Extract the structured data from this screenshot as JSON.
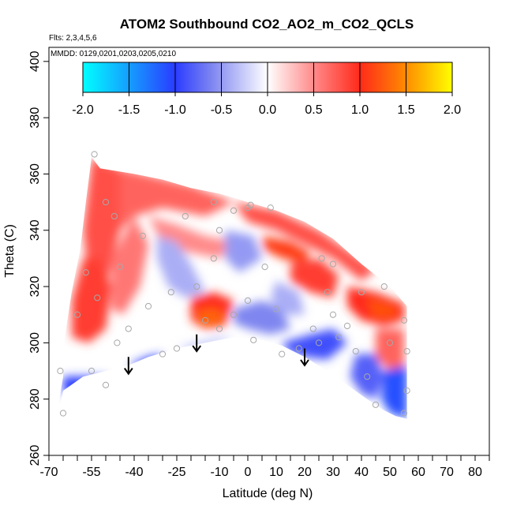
{
  "chart_data": {
    "type": "heatmap",
    "title": "ATOM2 Southbound CO2_AO2_m_CO2_QCLS",
    "subtitle_flights": "Flts: 2,3,4,5,6",
    "subtitle_dates": "MMDD: 0129,0201,0203,0205,0210",
    "xlabel": "Latitude (deg N)",
    "ylabel": "Theta (C)",
    "xlim": [
      -70,
      85
    ],
    "ylim": [
      260,
      405
    ],
    "x_tick_labels": [
      "-70",
      "-55",
      "-40",
      "-25",
      "-10",
      "0",
      "10",
      "20",
      "30",
      "40",
      "50",
      "60",
      "70",
      "80"
    ],
    "x_tick_values": [
      -70,
      -55,
      -40,
      -25,
      -10,
      0,
      10,
      20,
      30,
      40,
      50,
      60,
      70,
      80
    ],
    "x_minor_ticks": [
      -65,
      -60,
      -50,
      -45,
      -35,
      -30,
      -20,
      -15,
      -5,
      5,
      15,
      25,
      35,
      45,
      55,
      65,
      75,
      85
    ],
    "y_tick_labels": [
      "260",
      "280",
      "300",
      "320",
      "340",
      "360",
      "380",
      "400"
    ],
    "y_tick_values": [
      260,
      280,
      300,
      320,
      340,
      360,
      380,
      400
    ],
    "colorbar": {
      "range": [
        -2,
        2
      ],
      "tick_labels": [
        "-2.0",
        "-1.5",
        "-1.0",
        "-0.5",
        "0.0",
        "0.5",
        "1.0",
        "1.5",
        "2.0"
      ],
      "tick_values": [
        -2,
        -1.5,
        -1,
        -0.5,
        0,
        0.5,
        1,
        1.5,
        2
      ],
      "stops": [
        {
          "v": -2.0,
          "color": "#00ffff"
        },
        {
          "v": -1.0,
          "color": "#2a3cff"
        },
        {
          "v": -0.6,
          "color": "#7f86f0"
        },
        {
          "v": 0.0,
          "color": "#ffffff"
        },
        {
          "v": 0.5,
          "color": "#ff8a8a"
        },
        {
          "v": 1.0,
          "color": "#ff2a1a"
        },
        {
          "v": 1.5,
          "color": "#ff8c00"
        },
        {
          "v": 2.0,
          "color": "#ffff00"
        }
      ]
    },
    "arrows": [
      {
        "lat": -42,
        "theta_top": 295,
        "theta_bottom": 289
      },
      {
        "lat": -18,
        "theta_top": 303,
        "theta_bottom": 297
      },
      {
        "lat": 20,
        "theta_top": 298,
        "theta_bottom": 292
      }
    ],
    "boundary": {
      "upper": [
        [
          -65,
          298
        ],
        [
          -62,
          318
        ],
        [
          -59,
          333
        ],
        [
          -57,
          350
        ],
        [
          -55,
          366
        ],
        [
          -52,
          362
        ],
        [
          -40,
          360
        ],
        [
          -30,
          358
        ],
        [
          -20,
          355
        ],
        [
          -10,
          353
        ],
        [
          0,
          350
        ],
        [
          10,
          347
        ],
        [
          20,
          343
        ],
        [
          30,
          337
        ],
        [
          40,
          328
        ],
        [
          50,
          320
        ],
        [
          56,
          313
        ],
        [
          56,
          306
        ]
      ],
      "lower": [
        [
          56,
          306
        ],
        [
          56,
          280
        ],
        [
          56,
          273
        ],
        [
          52,
          274
        ],
        [
          48,
          276
        ],
        [
          42,
          280
        ],
        [
          35,
          285
        ],
        [
          28,
          290
        ],
        [
          20,
          295
        ],
        [
          12,
          299
        ],
        [
          5,
          301
        ],
        [
          -5,
          302
        ],
        [
          -15,
          300
        ],
        [
          -25,
          298
        ],
        [
          -35,
          295
        ],
        [
          -42,
          292
        ],
        [
          -50,
          290
        ],
        [
          -58,
          288
        ],
        [
          -65,
          283
        ],
        [
          -66,
          278
        ],
        [
          -67,
          276
        ],
        [
          -65,
          288
        ]
      ]
    },
    "field_regions": [
      {
        "v": 0.8,
        "poly": [
          [
            -58,
            340
          ],
          [
            -55,
            366
          ],
          [
            -45,
            362
          ],
          [
            -45,
            340
          ],
          [
            -50,
            320
          ],
          [
            -55,
            310
          ]
        ]
      },
      {
        "v": 0.7,
        "poly": [
          [
            -45,
            362
          ],
          [
            -20,
            356
          ],
          [
            -10,
            352
          ],
          [
            -5,
            350
          ],
          [
            -15,
            345
          ],
          [
            -30,
            348
          ],
          [
            -40,
            345
          ],
          [
            -45,
            340
          ]
        ]
      },
      {
        "v": 0.8,
        "poly": [
          [
            -5,
            350
          ],
          [
            10,
            347
          ],
          [
            25,
            340
          ],
          [
            35,
            333
          ],
          [
            45,
            326
          ],
          [
            40,
            322
          ],
          [
            30,
            330
          ],
          [
            20,
            335
          ],
          [
            10,
            340
          ],
          [
            0,
            343
          ]
        ]
      },
      {
        "v": 1.1,
        "poly": [
          [
            5,
            338
          ],
          [
            15,
            336
          ],
          [
            22,
            332
          ],
          [
            20,
            328
          ],
          [
            12,
            330
          ],
          [
            6,
            333
          ]
        ]
      },
      {
        "v": 0.9,
        "poly": [
          [
            -62,
            315
          ],
          [
            -58,
            330
          ],
          [
            -52,
            330
          ],
          [
            -48,
            320
          ],
          [
            -50,
            305
          ],
          [
            -56,
            300
          ],
          [
            -62,
            302
          ]
        ]
      },
      {
        "v": 0.6,
        "poly": [
          [
            -48,
            330
          ],
          [
            -40,
            345
          ],
          [
            -35,
            335
          ],
          [
            -38,
            320
          ],
          [
            -44,
            310
          ],
          [
            -48,
            312
          ]
        ]
      },
      {
        "v": 0.5,
        "poly": [
          [
            -35,
            345
          ],
          [
            -25,
            342
          ],
          [
            -15,
            338
          ],
          [
            -5,
            336
          ],
          [
            -10,
            330
          ],
          [
            -20,
            332
          ],
          [
            -30,
            335
          ]
        ]
      },
      {
        "v": 1.0,
        "poly": [
          [
            -20,
            316
          ],
          [
            -12,
            318
          ],
          [
            -5,
            315
          ],
          [
            -8,
            306
          ],
          [
            -15,
            305
          ],
          [
            -20,
            308
          ]
        ]
      },
      {
        "v": 1.3,
        "poly": [
          [
            -17,
            312
          ],
          [
            -10,
            312
          ],
          [
            -8,
            308
          ],
          [
            -14,
            306
          ],
          [
            -18,
            308
          ]
        ]
      },
      {
        "v": 0.9,
        "poly": [
          [
            15,
            328
          ],
          [
            25,
            330
          ],
          [
            32,
            324
          ],
          [
            30,
            316
          ],
          [
            22,
            318
          ],
          [
            15,
            322
          ]
        ]
      },
      {
        "v": 1.0,
        "poly": [
          [
            35,
            320
          ],
          [
            45,
            318
          ],
          [
            55,
            314
          ],
          [
            55,
            308
          ],
          [
            48,
            306
          ],
          [
            40,
            308
          ],
          [
            35,
            313
          ]
        ]
      },
      {
        "v": 1.2,
        "poly": [
          [
            42,
            316
          ],
          [
            52,
            313
          ],
          [
            52,
            309
          ],
          [
            44,
            309
          ]
        ]
      },
      {
        "v": 0.7,
        "poly": [
          [
            45,
            305
          ],
          [
            55,
            305
          ],
          [
            55,
            292
          ],
          [
            50,
            290
          ],
          [
            45,
            295
          ]
        ]
      },
      {
        "v": -0.4,
        "poly": [
          [
            -32,
            338
          ],
          [
            -25,
            336
          ],
          [
            -20,
            328
          ],
          [
            -15,
            318
          ],
          [
            -22,
            316
          ],
          [
            -28,
            320
          ],
          [
            -32,
            330
          ]
        ]
      },
      {
        "v": -0.5,
        "poly": [
          [
            -8,
            340
          ],
          [
            2,
            338
          ],
          [
            5,
            330
          ],
          [
            -3,
            325
          ],
          [
            -8,
            330
          ]
        ]
      },
      {
        "v": -0.6,
        "poly": [
          [
            -5,
            312
          ],
          [
            5,
            315
          ],
          [
            12,
            312
          ],
          [
            15,
            305
          ],
          [
            8,
            303
          ],
          [
            0,
            305
          ],
          [
            -5,
            307
          ]
        ]
      },
      {
        "v": -0.4,
        "poly": [
          [
            10,
            322
          ],
          [
            18,
            318
          ],
          [
            20,
            310
          ],
          [
            12,
            310
          ],
          [
            8,
            316
          ]
        ]
      },
      {
        "v": -0.9,
        "poly": [
          [
            12,
            300
          ],
          [
            22,
            303
          ],
          [
            30,
            305
          ],
          [
            35,
            300
          ],
          [
            28,
            294
          ],
          [
            20,
            295
          ],
          [
            14,
            297
          ]
        ]
      },
      {
        "v": -1.0,
        "poly": [
          [
            -65,
            288
          ],
          [
            -58,
            288
          ],
          [
            -50,
            288
          ],
          [
            -48,
            284
          ],
          [
            -55,
            280
          ],
          [
            -62,
            280
          ],
          [
            -65,
            283
          ]
        ]
      },
      {
        "v": -1.0,
        "poly": [
          [
            -42,
            292
          ],
          [
            -35,
            295
          ],
          [
            -30,
            296
          ],
          [
            -32,
            292
          ],
          [
            -38,
            291
          ]
        ]
      },
      {
        "v": -0.8,
        "poly": [
          [
            38,
            296
          ],
          [
            45,
            296
          ],
          [
            48,
            288
          ],
          [
            45,
            280
          ],
          [
            40,
            282
          ],
          [
            36,
            288
          ]
        ]
      },
      {
        "v": -1.1,
        "poly": [
          [
            48,
            290
          ],
          [
            56,
            292
          ],
          [
            56,
            273
          ],
          [
            50,
            275
          ],
          [
            47,
            280
          ]
        ]
      },
      {
        "v": -0.3,
        "poly": [
          [
            -25,
            298
          ],
          [
            -18,
            300
          ],
          [
            -10,
            302
          ],
          [
            -5,
            302
          ],
          [
            -12,
            299
          ],
          [
            -20,
            297
          ]
        ]
      }
    ],
    "observation_points": [
      [
        -54,
        367
      ],
      [
        -50,
        350
      ],
      [
        -47,
        345
      ],
      [
        -45,
        327
      ],
      [
        -37,
        338
      ],
      [
        -27,
        318
      ],
      [
        -22,
        345
      ],
      [
        -12,
        350
      ],
      [
        -5,
        347
      ],
      [
        0,
        348
      ],
      [
        1,
        349
      ],
      [
        8,
        348
      ],
      [
        -10,
        340
      ],
      [
        -12,
        330
      ],
      [
        -18,
        320
      ],
      [
        -35,
        313
      ],
      [
        -42,
        305
      ],
      [
        -46,
        300
      ],
      [
        -53,
        316
      ],
      [
        -57,
        325
      ],
      [
        -60,
        310
      ],
      [
        -55,
        290
      ],
      [
        -50,
        285
      ],
      [
        -65,
        275
      ],
      [
        -66,
        290
      ],
      [
        -30,
        296
      ],
      [
        -25,
        298
      ],
      [
        -10,
        305
      ],
      [
        -5,
        310
      ],
      [
        0,
        315
      ],
      [
        2,
        301
      ],
      [
        6,
        327
      ],
      [
        10,
        312
      ],
      [
        12,
        296
      ],
      [
        18,
        298
      ],
      [
        23,
        305
      ],
      [
        26,
        330
      ],
      [
        28,
        318
      ],
      [
        30,
        310
      ],
      [
        32,
        302
      ],
      [
        35,
        306
      ],
      [
        38,
        297
      ],
      [
        42,
        288
      ],
      [
        45,
        278
      ],
      [
        48,
        320
      ],
      [
        50,
        300
      ],
      [
        55,
        308
      ],
      [
        56,
        297
      ],
      [
        56,
        283
      ],
      [
        55,
        275
      ],
      [
        40,
        318
      ],
      [
        30,
        328
      ],
      [
        25,
        300
      ],
      [
        -15,
        308
      ]
    ]
  }
}
